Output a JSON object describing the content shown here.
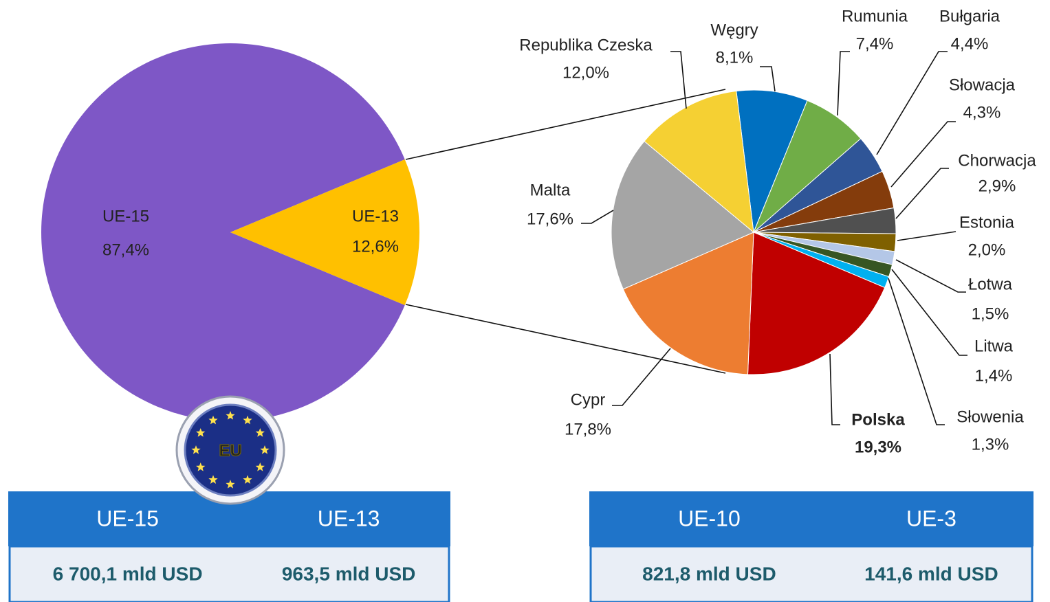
{
  "chart_data": [
    {
      "type": "pie",
      "categories": [
        "UE-15",
        "UE-13"
      ],
      "values": [
        87.4,
        12.6
      ],
      "value_labels": [
        "87,4%",
        "12,6%"
      ],
      "colors": [
        "#7e57c6",
        "#ffc000"
      ]
    },
    {
      "type": "pie",
      "categories": [
        "Węgry",
        "Rumunia",
        "Bułgaria",
        "Słowacja",
        "Chorwacja",
        "Estonia",
        "Łotwa",
        "Litwa",
        "Słowenia",
        "Polska",
        "Cypr",
        "Malta",
        "Republika Czeska"
      ],
      "values": [
        8.1,
        7.4,
        4.4,
        4.3,
        2.9,
        2.0,
        1.5,
        1.4,
        1.3,
        19.3,
        17.8,
        17.6,
        12.0
      ],
      "value_labels": [
        "8,1%",
        "7,4%",
        "4,4%",
        "4,3%",
        "2,9%",
        "2,0%",
        "1,5%",
        "1,4%",
        "1,3%",
        "19,3%",
        "17,8%",
        "17,6%",
        "12,0%"
      ],
      "colors": [
        "#0070c0",
        "#70ad47",
        "#2f5597",
        "#843c0c",
        "#505050",
        "#7f6000",
        "#b4c7e7",
        "#375623",
        "#00b0f0",
        "#c00000",
        "#ed7d31",
        "#a5a5a5",
        "#f5d033"
      ]
    }
  ],
  "badge": "EU",
  "tables": [
    {
      "header": [
        "UE-15",
        "UE-13"
      ],
      "row": [
        "6 700,1 mld USD",
        "963,5 mld USD"
      ]
    },
    {
      "header": [
        "UE-10",
        "UE-3"
      ],
      "row": [
        "821,8 mld USD",
        "141,6 mld USD"
      ]
    }
  ]
}
